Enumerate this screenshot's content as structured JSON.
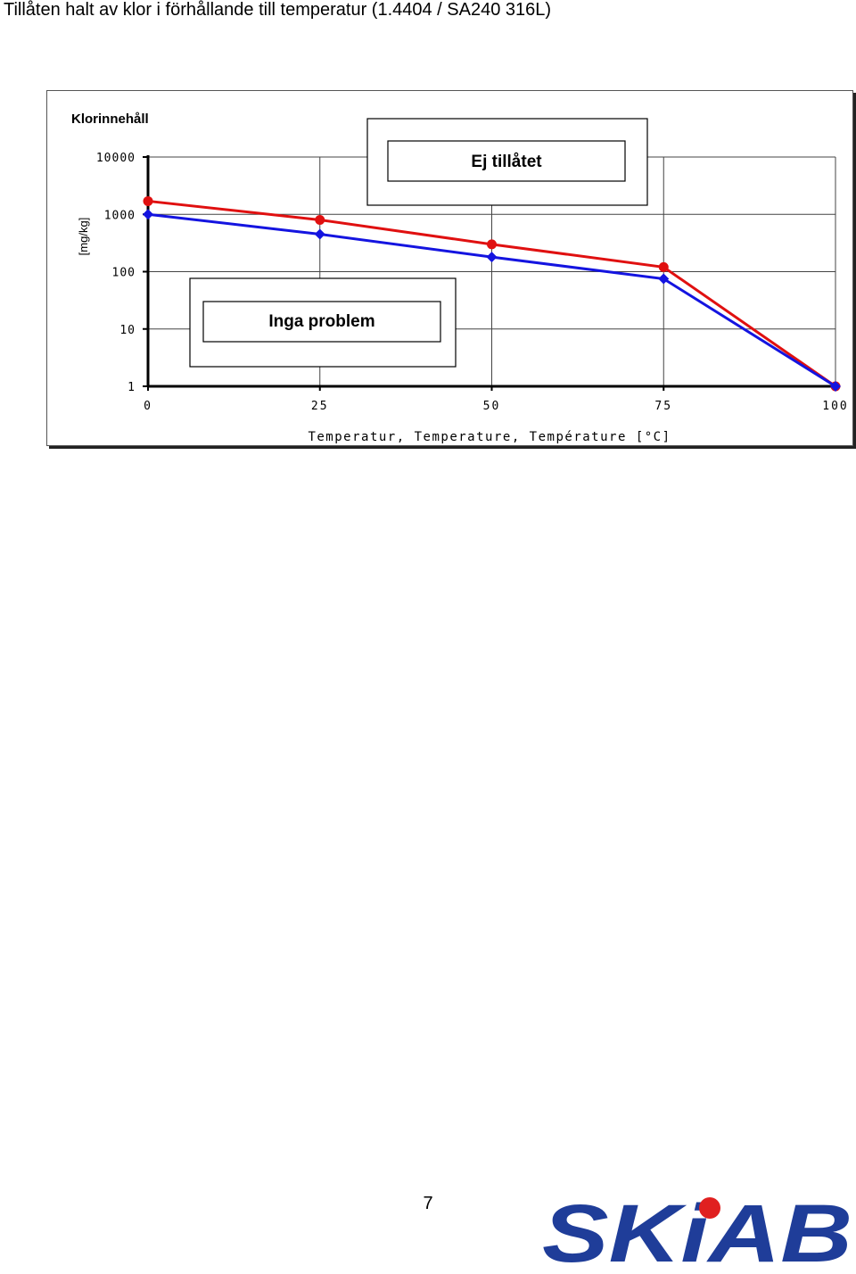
{
  "page": {
    "title": "Tillåten halt av klor i förhållande till temperatur (1.4404 / SA240 316L)",
    "page_number": "7",
    "logo_text": "SKiAB",
    "logo_color": "#1f3d99",
    "logo_dot_color": "#e02020"
  },
  "chart_data": {
    "type": "line",
    "title": "Klorinnehåll",
    "xlabel": "Temperatur, Temperature, Température [°C]",
    "ylabel": "[mg/kg]",
    "x": [
      0,
      25,
      50,
      75,
      100
    ],
    "x_ticks": [
      "0",
      "25",
      "50",
      "75",
      "100"
    ],
    "y_scale": "log",
    "ylim": [
      1,
      10000
    ],
    "y_ticks": [
      "1",
      "10",
      "100",
      "1000",
      "10000"
    ],
    "xlim": [
      0,
      100
    ],
    "grid": true,
    "series": [
      {
        "color": "#e01010",
        "values": [
          1700,
          800,
          300,
          120,
          1
        ]
      },
      {
        "color": "#1414e0",
        "values": [
          1000,
          450,
          180,
          75,
          1
        ]
      }
    ],
    "annotations": [
      {
        "text": "Ej tillåtet"
      },
      {
        "text": "Inga problem"
      }
    ]
  }
}
